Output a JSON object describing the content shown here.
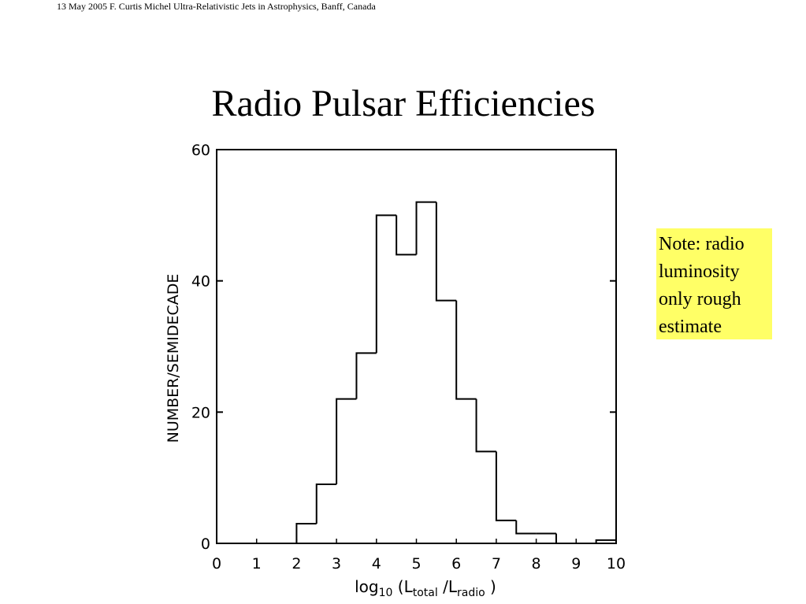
{
  "header": "13 May 2005 F. Curtis Michel Ultra-Relativistic Jets in Astrophysics, Banff, Canada",
  "note": [
    "Note: radio",
    "luminosity",
    "only rough",
    "estimate"
  ],
  "chart_data": {
    "type": "histogram",
    "title": "Radio Pulsar Efficiencies",
    "x_label": [
      "log",
      "10",
      " (L",
      "total",
      " /L",
      "radio",
      " )"
    ],
    "y_label": "NUMBER/SEMIDECADE",
    "bins": [
      0,
      0.5,
      1,
      1.5,
      2,
      2.5,
      3,
      3.5,
      4,
      4.5,
      5,
      5.5,
      6,
      6.5,
      7,
      7.5,
      8,
      8.5,
      9,
      9.5,
      10
    ],
    "values": [
      0,
      0,
      0,
      0,
      3,
      9,
      22,
      29,
      50,
      44,
      52,
      37,
      22,
      14,
      3.5,
      1.5,
      1.5,
      0,
      0,
      0.5
    ],
    "color": "#000000",
    "xlim": [
      0,
      10
    ],
    "xticks": [
      0,
      1,
      2,
      3,
      4,
      5,
      6,
      7,
      8,
      9,
      10
    ],
    "ylim": [
      0,
      60
    ],
    "yticks": [
      0,
      20,
      40,
      60
    ],
    "grid": false
  }
}
